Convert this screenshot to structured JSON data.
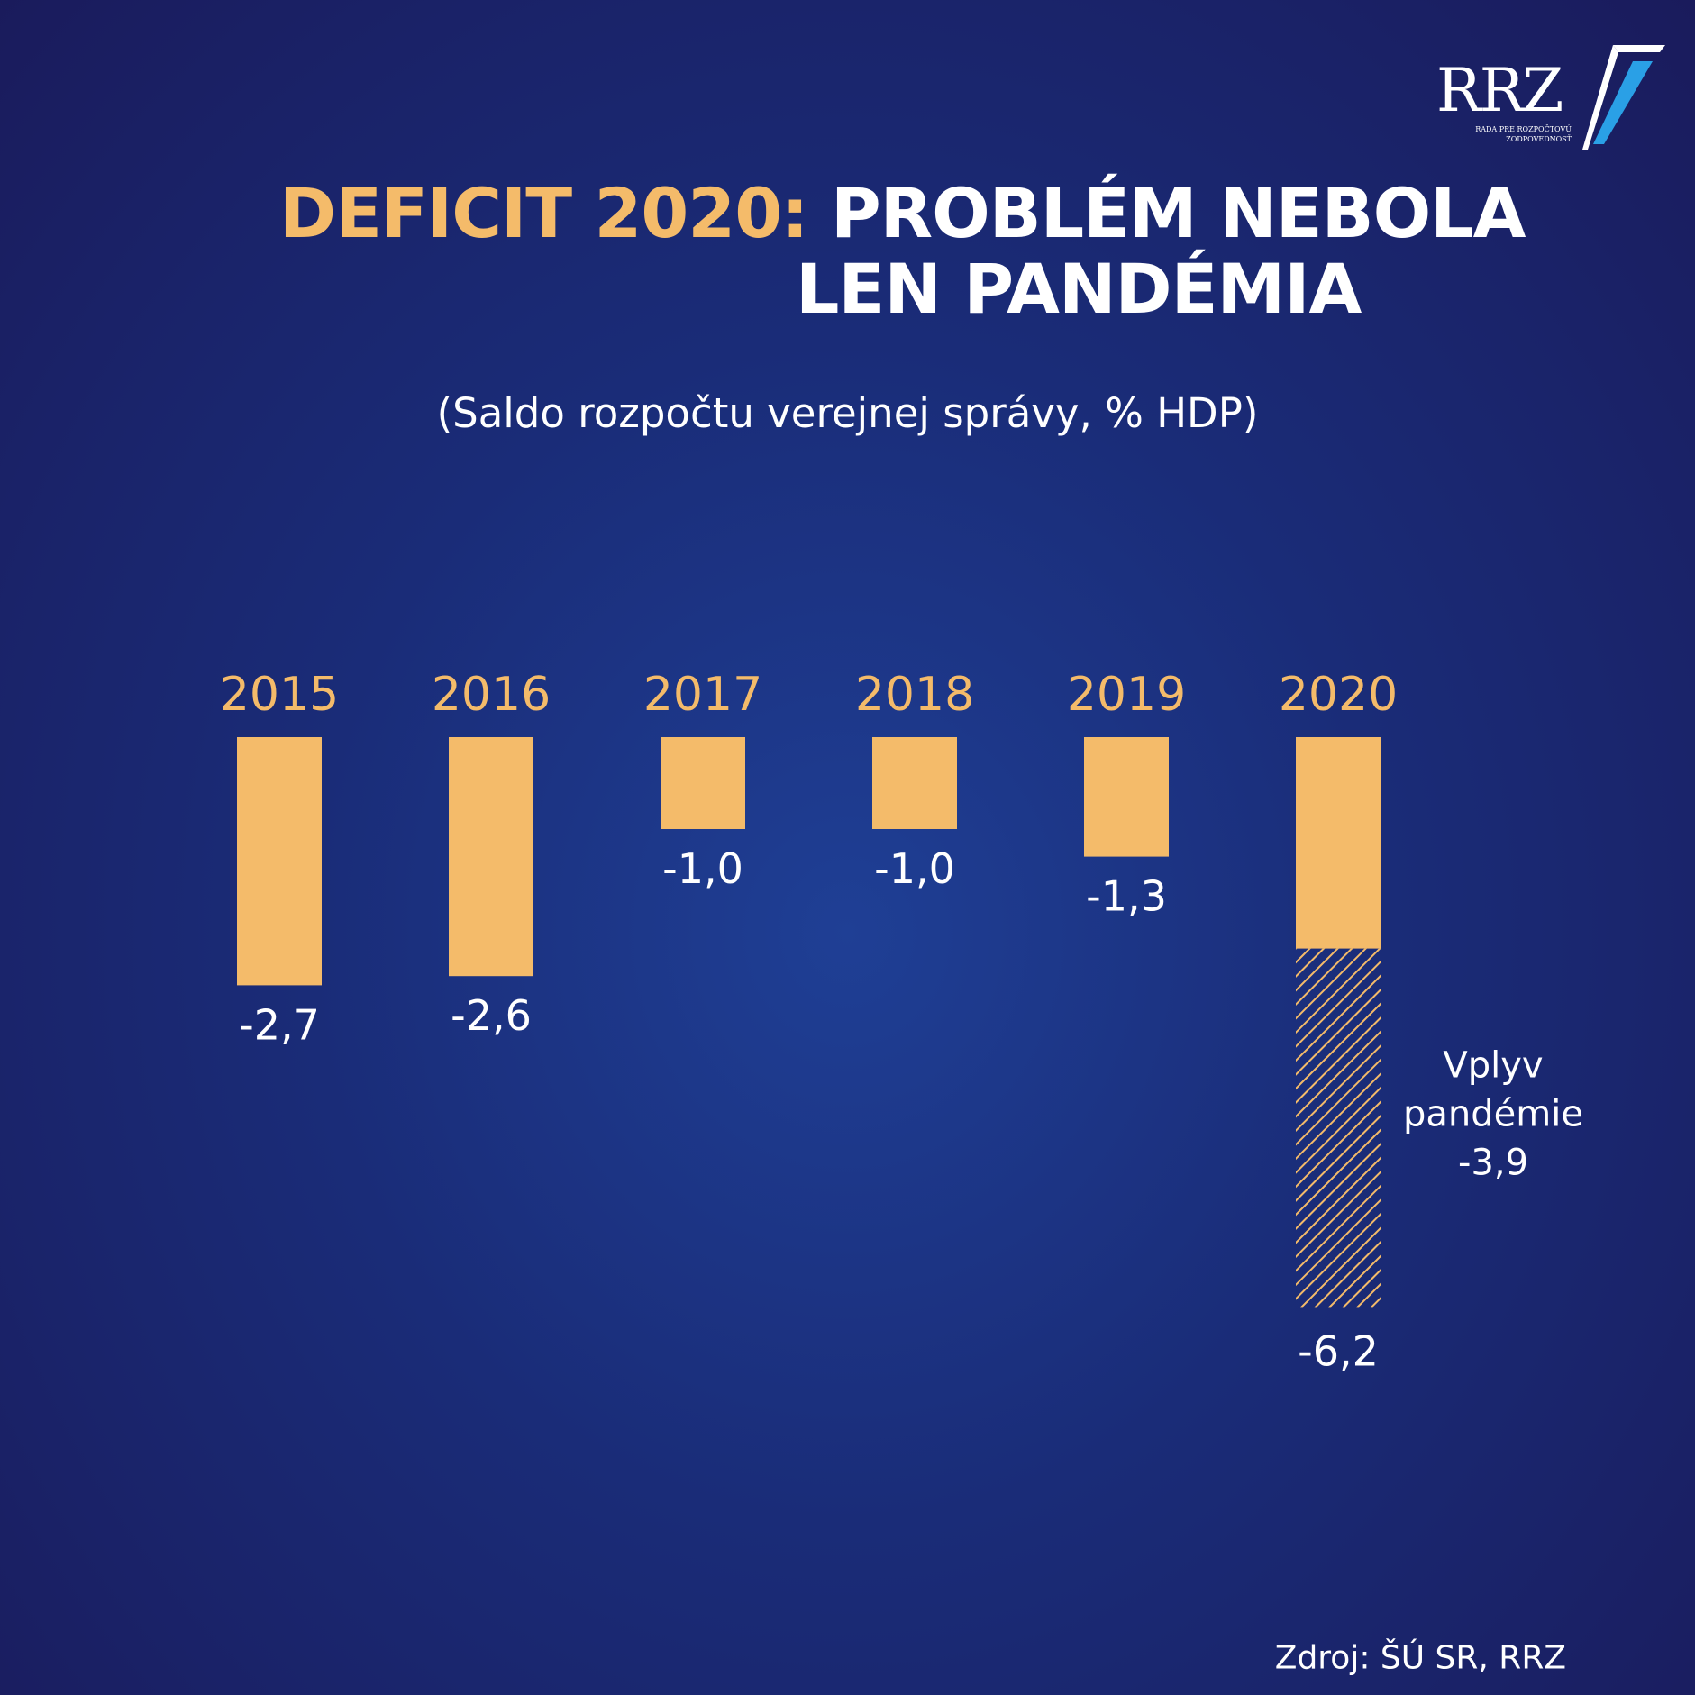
{
  "logo": {
    "text": "RRZ",
    "subtitle_line1": "RADA PRE ROZPOČTOVÚ",
    "subtitle_line2": "ZODPOVEDNOSŤ"
  },
  "title": {
    "accent": "DEFICIT 2020:",
    "line1": "PROBLÉM NEBOLA",
    "line2": "LEN PANDÉMIA"
  },
  "subtitle": "(Saldo rozpočtu verejnej správy, % HDP)",
  "source": "Zdroj: ŠÚ SR, RRZ",
  "colors": {
    "bar": "#f4bb6a",
    "accent_text": "#f4bb6a",
    "text": "#ffffff",
    "background": "#1a2c78",
    "logo_mark": "#2aa0e6"
  },
  "chart_data": {
    "type": "bar",
    "categories": [
      "2015",
      "2016",
      "2017",
      "2018",
      "2019",
      "2020"
    ],
    "values": [
      -2.7,
      -2.6,
      -1.0,
      -1.0,
      -1.3,
      -6.2
    ],
    "value_labels": [
      "-2,7",
      "-2,6",
      "-1,0",
      "-1,0",
      "-1,3",
      "-6,2"
    ],
    "segments_2020": {
      "base": -2.3,
      "pandemic": -3.9
    },
    "annotation": {
      "line1": "Vplyv",
      "line2": "pandémie",
      "value": "-3,9"
    },
    "ylim": [
      -6.2,
      0
    ],
    "grid": false,
    "legend": "none"
  }
}
